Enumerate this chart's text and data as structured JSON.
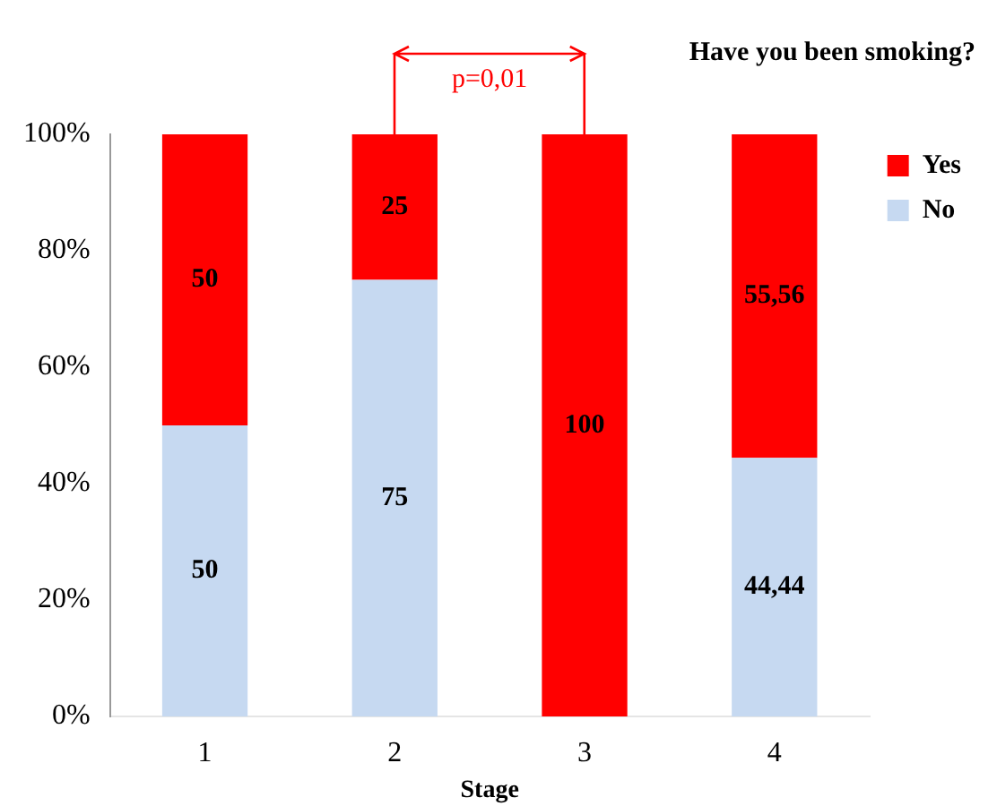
{
  "chart_data": {
    "type": "bar",
    "stacked": true,
    "xlabel": "Stage",
    "legend_title": "Have you been smoking?",
    "legend": "top right",
    "categories": [
      "1",
      "2",
      "3",
      "4"
    ],
    "series": [
      {
        "name": "No",
        "color": "#c6d9f1",
        "values": [
          50,
          75,
          0,
          44.44
        ],
        "value_labels": [
          "50",
          "75",
          null,
          "44,44"
        ]
      },
      {
        "name": "Yes",
        "color": "#ff0000",
        "values": [
          50,
          25,
          100,
          55.56
        ],
        "value_labels": [
          "50",
          "25",
          "100",
          "55,56"
        ]
      }
    ],
    "ylim": [
      0,
      100
    ],
    "yticks": [
      {
        "value": 0,
        "label": "0%"
      },
      {
        "value": 20,
        "label": "20%"
      },
      {
        "value": 40,
        "label": "40%"
      },
      {
        "value": 60,
        "label": "60%"
      },
      {
        "value": 80,
        "label": "80%"
      },
      {
        "value": 100,
        "label": "100%"
      }
    ],
    "annotations": [
      "p=0,01"
    ]
  }
}
